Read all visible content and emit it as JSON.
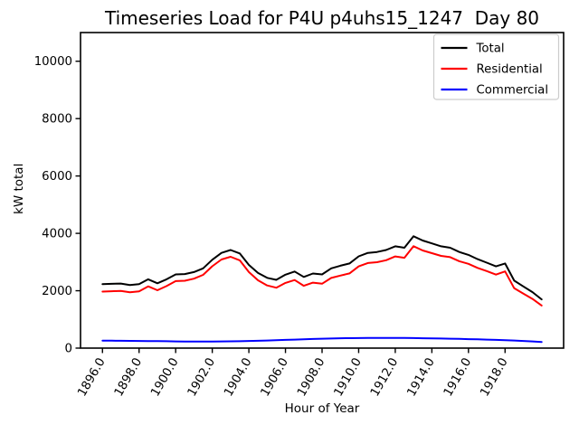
{
  "chart_data": {
    "type": "line",
    "title": "Timeseries Load for P4U p4uhs15_1247  Day 80",
    "xlabel": "Hour of Year",
    "ylabel": "kW total",
    "xlim": [
      1894.8,
      1921.2
    ],
    "ylim": [
      0,
      11000
    ],
    "grid": false,
    "legend_position": "upper right",
    "x_ticks": [
      1896,
      1898,
      1900,
      1902,
      1904,
      1906,
      1908,
      1910,
      1912,
      1914,
      1916,
      1918
    ],
    "x_tick_labels": [
      "1896.0",
      "1898.0",
      "1900.0",
      "1902.0",
      "1904.0",
      "1906.0",
      "1908.0",
      "1910.0",
      "1912.0",
      "1914.0",
      "1916.0",
      "1918.0"
    ],
    "y_ticks": [
      0,
      2000,
      4000,
      6000,
      8000,
      10000
    ],
    "y_tick_labels": [
      "0",
      "2000",
      "4000",
      "6000",
      "8000",
      "10000"
    ],
    "x": [
      1896.0,
      1896.5,
      1897.0,
      1897.5,
      1898.0,
      1898.5,
      1899.0,
      1899.5,
      1900.0,
      1900.5,
      1901.0,
      1901.5,
      1902.0,
      1902.5,
      1903.0,
      1903.5,
      1904.0,
      1904.5,
      1905.0,
      1905.5,
      1906.0,
      1906.5,
      1907.0,
      1907.5,
      1908.0,
      1908.5,
      1909.0,
      1909.5,
      1910.0,
      1910.5,
      1911.0,
      1911.5,
      1912.0,
      1912.5,
      1913.0,
      1913.5,
      1914.0,
      1914.5,
      1915.0,
      1915.5,
      1916.0,
      1916.5,
      1917.0,
      1917.5,
      1918.0,
      1918.5,
      1919.0,
      1919.5,
      1920.0
    ],
    "series": [
      {
        "name": "Total",
        "color": "#000000",
        "values": [
          2230,
          2240,
          2250,
          2200,
          2230,
          2400,
          2260,
          2400,
          2570,
          2580,
          2650,
          2780,
          3080,
          3320,
          3420,
          3300,
          2900,
          2620,
          2450,
          2380,
          2560,
          2670,
          2480,
          2600,
          2570,
          2780,
          2870,
          2950,
          3200,
          3320,
          3350,
          3420,
          3550,
          3500,
          3900,
          3750,
          3650,
          3550,
          3500,
          3350,
          3250,
          3100,
          2980,
          2850,
          2950,
          2350,
          2150,
          1950,
          1700
        ]
      },
      {
        "name": "Residential",
        "color": "#ff0000",
        "values": [
          1970,
          1982,
          1994,
          1947,
          1980,
          2154,
          2018,
          2162,
          2336,
          2349,
          2421,
          2552,
          2851,
          3088,
          3184,
          3059,
          2652,
          2364,
          2185,
          2105,
          2274,
          2373,
          2172,
          2282,
          2243,
          2445,
          2528,
          2603,
          2849,
          2966,
          2995,
          3065,
          3196,
          3148,
          3551,
          3405,
          3310,
          3216,
          3172,
          3029,
          2937,
          2795,
          2684,
          2564,
          2674,
          2086,
          1900,
          1716,
          1485
        ]
      },
      {
        "name": "Commercial",
        "color": "#0000ff",
        "values": [
          260,
          258,
          256,
          253,
          250,
          246,
          242,
          238,
          234,
          231,
          229,
          228,
          229,
          232,
          236,
          241,
          248,
          256,
          265,
          275,
          286,
          297,
          308,
          318,
          327,
          335,
          342,
          347,
          351,
          354,
          355,
          355,
          354,
          352,
          349,
          345,
          340,
          334,
          328,
          321,
          313,
          305,
          296,
          286,
          276,
          264,
          250,
          234,
          215
        ]
      }
    ]
  }
}
